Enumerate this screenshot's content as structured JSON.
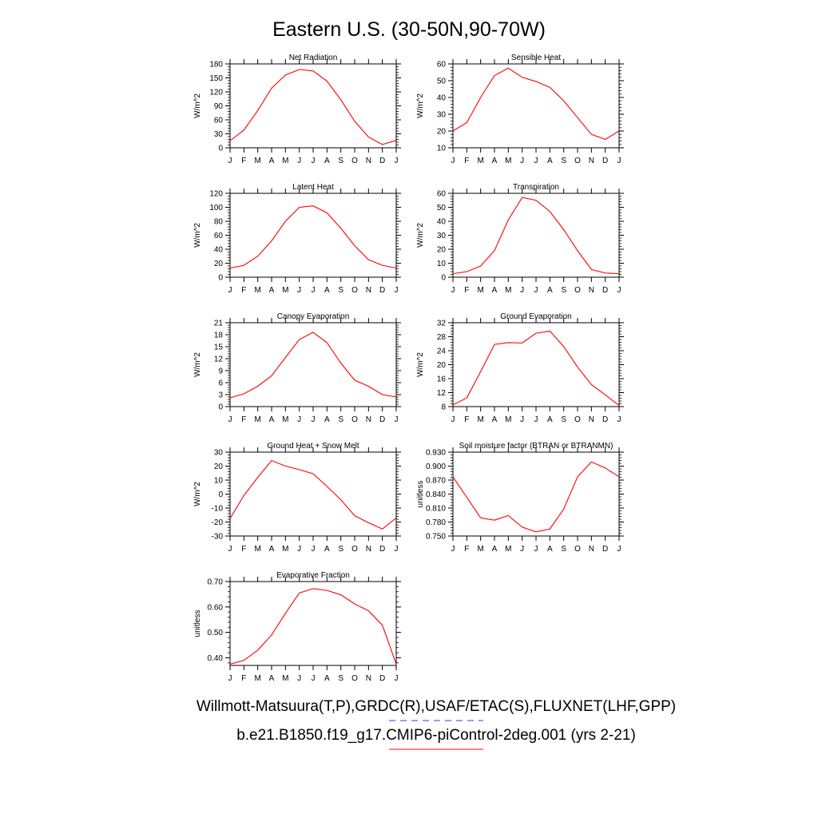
{
  "figure_title": "Eastern U.S. (30-50N,90-70W)",
  "legend": [
    {
      "label": "Willmott-Matsuura(T,P),GRDC(R),USAF/ETAC(S),FLUXNET(LHF,GPP)",
      "color": "#3333ff",
      "style": "dashed"
    },
    {
      "label": "b.e21.B1850.f19_g17.CMIP6-piControl-2deg.001 (yrs 2-21)",
      "color": "#ff0000",
      "style": "solid"
    }
  ],
  "line_color": "#ff0000",
  "chart_data": [
    {
      "type": "line",
      "title": "Net Radiation",
      "ylabel": "W/m^2",
      "categories": [
        "J",
        "F",
        "M",
        "A",
        "M",
        "J",
        "J",
        "A",
        "S",
        "O",
        "N",
        "D",
        "J"
      ],
      "ylim": [
        0,
        180
      ],
      "yticks": [
        "0",
        "30",
        "60",
        "90",
        "120",
        "150",
        "180"
      ],
      "values": [
        15,
        38,
        80,
        128,
        156,
        168,
        165,
        143,
        103,
        57,
        23,
        7,
        16
      ]
    },
    {
      "type": "line",
      "title": "Sensible Heat",
      "ylabel": "W/m^2",
      "categories": [
        "J",
        "F",
        "M",
        "A",
        "M",
        "J",
        "J",
        "A",
        "S",
        "O",
        "N",
        "D",
        "J"
      ],
      "ylim": [
        10,
        60
      ],
      "yticks": [
        "10",
        "20",
        "30",
        "40",
        "50",
        "60"
      ],
      "values": [
        20,
        25,
        40,
        53,
        57.5,
        52,
        49.5,
        46,
        38,
        28,
        18,
        15,
        20
      ]
    },
    {
      "type": "line",
      "title": "Latent Heat",
      "ylabel": "W/m^2",
      "categories": [
        "J",
        "F",
        "M",
        "A",
        "M",
        "J",
        "J",
        "A",
        "S",
        "O",
        "N",
        "D",
        "J"
      ],
      "ylim": [
        0,
        120
      ],
      "yticks": [
        "0",
        "20",
        "40",
        "60",
        "80",
        "100",
        "120"
      ],
      "values": [
        13,
        17,
        30,
        52,
        80,
        100,
        102,
        92,
        70,
        45,
        25,
        17,
        13
      ]
    },
    {
      "type": "line",
      "title": "Transpiration",
      "ylabel": "W/m^2",
      "categories": [
        "J",
        "F",
        "M",
        "A",
        "M",
        "J",
        "J",
        "A",
        "S",
        "O",
        "N",
        "D",
        "J"
      ],
      "ylim": [
        0,
        60
      ],
      "yticks": [
        "0",
        "10",
        "20",
        "30",
        "40",
        "50",
        "60"
      ],
      "values": [
        2.5,
        4,
        8,
        19,
        41,
        57,
        55,
        47,
        34,
        19,
        5.5,
        3,
        2.5
      ]
    },
    {
      "type": "line",
      "title": "Canopy Evaporation",
      "ylabel": "W/m^2",
      "categories": [
        "J",
        "F",
        "M",
        "A",
        "M",
        "J",
        "J",
        "A",
        "S",
        "O",
        "N",
        "D",
        "J"
      ],
      "ylim": [
        0,
        21
      ],
      "yticks": [
        "0",
        "3",
        "6",
        "9",
        "12",
        "15",
        "18",
        "21"
      ],
      "values": [
        2.2,
        3.2,
        5.1,
        7.7,
        12.3,
        16.8,
        18.6,
        16.0,
        10.9,
        6.6,
        5.1,
        3.0,
        2.4
      ]
    },
    {
      "type": "line",
      "title": "Ground Evaporation",
      "ylabel": "W/m^2",
      "categories": [
        "J",
        "F",
        "M",
        "A",
        "M",
        "J",
        "J",
        "A",
        "S",
        "O",
        "N",
        "D",
        "J"
      ],
      "ylim": [
        8,
        32
      ],
      "yticks": [
        "8",
        "12",
        "16",
        "20",
        "24",
        "28",
        "32"
      ],
      "values": [
        8.5,
        10.5,
        18,
        25.8,
        26.3,
        26.2,
        29,
        29.6,
        25.2,
        19.3,
        14.3,
        11.4,
        8.3
      ]
    },
    {
      "type": "line",
      "title": "Ground Heat + Snow Melt",
      "ylabel": "W/m^2",
      "categories": [
        "J",
        "F",
        "M",
        "A",
        "M",
        "J",
        "J",
        "A",
        "S",
        "O",
        "N",
        "D",
        "J"
      ],
      "ylim": [
        -30,
        30
      ],
      "yticks": [
        "-30",
        "-20",
        "-10",
        "0",
        "10",
        "20",
        "30"
      ],
      "values": [
        -17.5,
        -1,
        12,
        24,
        20,
        17.5,
        14.5,
        5.5,
        -4,
        -15.5,
        -20.5,
        -25,
        -17
      ]
    },
    {
      "type": "line",
      "title": "Soil moisture factor (BTRAN or BTRANMN)",
      "ylabel": "unitless",
      "categories": [
        "J",
        "F",
        "M",
        "A",
        "M",
        "J",
        "J",
        "A",
        "S",
        "O",
        "N",
        "D",
        "J"
      ],
      "ylim": [
        0.75,
        0.93
      ],
      "yticks": [
        "0.750",
        "0.780",
        "0.810",
        "0.840",
        "0.870",
        "0.900",
        "0.930"
      ],
      "values": [
        0.877,
        0.833,
        0.789,
        0.784,
        0.794,
        0.769,
        0.759,
        0.765,
        0.808,
        0.877,
        0.909,
        0.896,
        0.877
      ]
    },
    {
      "type": "line",
      "title": "Evaporative Fraction",
      "ylabel": "unitless",
      "categories": [
        "J",
        "F",
        "M",
        "A",
        "M",
        "J",
        "J",
        "A",
        "S",
        "O",
        "N",
        "D",
        "J"
      ],
      "ylim": [
        0.37,
        0.7
      ],
      "yticks": [
        "0.40",
        "0.50",
        "0.60",
        "0.70"
      ],
      "ytick_values": [
        0.4,
        0.5,
        0.6,
        0.7
      ],
      "values": [
        0.375,
        0.39,
        0.43,
        0.49,
        0.575,
        0.655,
        0.672,
        0.665,
        0.648,
        0.612,
        0.585,
        0.528,
        0.375
      ]
    }
  ]
}
